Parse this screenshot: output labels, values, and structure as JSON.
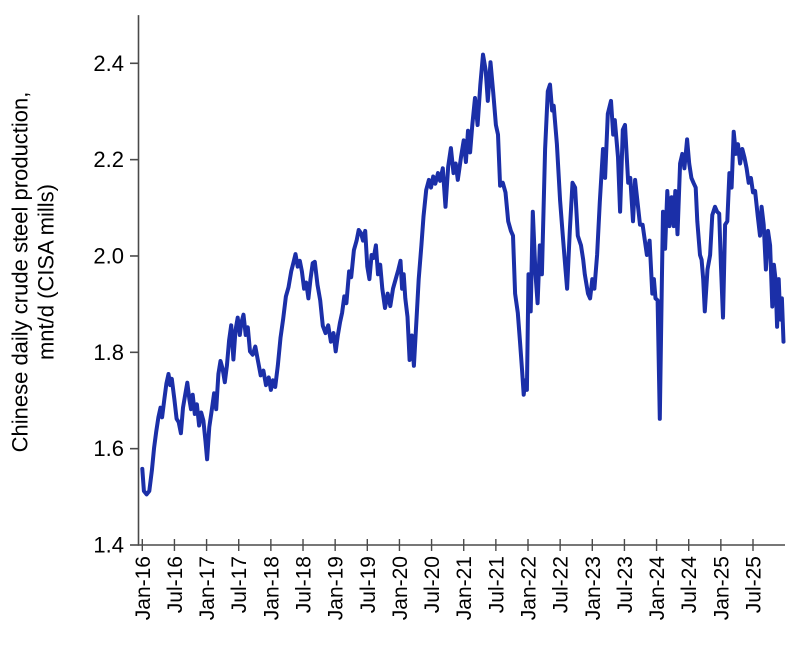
{
  "chart_data": {
    "type": "line",
    "title": "",
    "ylabel": "Chinese daily crude steel production, mnt/d (CISA mills)",
    "ylabel_lines": [
      "Chinese daily crude steel production,",
      "mnt/d (CISA mills)"
    ],
    "xlabel": "",
    "x_unit": "months since Jan-2016",
    "grid": false,
    "legend": "none",
    "background": "#ffffff",
    "line_color": "#1b2fa8",
    "axis_color": "#4a4a4a",
    "text_color": "#000000",
    "ylim": [
      1.4,
      2.5
    ],
    "y_ticks": [
      1.4,
      1.6,
      1.8,
      2.0,
      2.2,
      2.4
    ],
    "y_tick_labels": [
      "1.4",
      "1.6",
      "1.8",
      "2.0",
      "2.2",
      "2.4"
    ],
    "x_tick_months": [
      0,
      6,
      12,
      18,
      24,
      30,
      36,
      42,
      48,
      54,
      60,
      66,
      72,
      78,
      84,
      90,
      96,
      102,
      108,
      114
    ],
    "x_tick_labels": [
      "Jan-16",
      "Jul-16",
      "Jan-17",
      "Jul-17",
      "Jan-18",
      "Jul-18",
      "Jan-19",
      "Jul-19",
      "Jan-20",
      "Jul-20",
      "Jan-21",
      "Jul-21",
      "Jan-22",
      "Jul-22",
      "Jan-23",
      "Jul-23",
      "Jan-24",
      "Jul-24",
      "Jan-25",
      "Jul-25"
    ],
    "series": [
      {
        "name": "Daily crude steel production (CISA mills), mnt/d",
        "points": [
          [
            0.0,
            1.558
          ],
          [
            0.3,
            1.512
          ],
          [
            0.8,
            1.505
          ],
          [
            1.3,
            1.512
          ],
          [
            1.8,
            1.555
          ],
          [
            2.2,
            1.602
          ],
          [
            2.6,
            1.635
          ],
          [
            3.0,
            1.665
          ],
          [
            3.4,
            1.685
          ],
          [
            3.7,
            1.665
          ],
          [
            4.1,
            1.702
          ],
          [
            4.5,
            1.735
          ],
          [
            4.9,
            1.755
          ],
          [
            5.2,
            1.732
          ],
          [
            5.5,
            1.745
          ],
          [
            6.0,
            1.702
          ],
          [
            6.4,
            1.662
          ],
          [
            6.8,
            1.655
          ],
          [
            7.2,
            1.632
          ],
          [
            7.6,
            1.685
          ],
          [
            8.0,
            1.712
          ],
          [
            8.4,
            1.737
          ],
          [
            8.8,
            1.702
          ],
          [
            9.1,
            1.682
          ],
          [
            9.4,
            1.712
          ],
          [
            9.8,
            1.672
          ],
          [
            10.2,
            1.692
          ],
          [
            10.6,
            1.648
          ],
          [
            11.0,
            1.675
          ],
          [
            11.4,
            1.658
          ],
          [
            11.8,
            1.615
          ],
          [
            12.1,
            1.578
          ],
          [
            12.5,
            1.645
          ],
          [
            13.0,
            1.682
          ],
          [
            13.4,
            1.715
          ],
          [
            13.8,
            1.682
          ],
          [
            14.2,
            1.755
          ],
          [
            14.6,
            1.782
          ],
          [
            15.0,
            1.765
          ],
          [
            15.4,
            1.738
          ],
          [
            15.8,
            1.772
          ],
          [
            16.2,
            1.825
          ],
          [
            16.6,
            1.856
          ],
          [
            17.0,
            1.785
          ],
          [
            17.4,
            1.846
          ],
          [
            17.8,
            1.872
          ],
          [
            18.2,
            1.836
          ],
          [
            18.5,
            1.862
          ],
          [
            18.9,
            1.878
          ],
          [
            19.3,
            1.836
          ],
          [
            19.7,
            1.852
          ],
          [
            20.1,
            1.802
          ],
          [
            20.6,
            1.795
          ],
          [
            21.1,
            1.812
          ],
          [
            21.6,
            1.782
          ],
          [
            22.1,
            1.752
          ],
          [
            22.6,
            1.762
          ],
          [
            23.1,
            1.732
          ],
          [
            23.6,
            1.748
          ],
          [
            24.0,
            1.722
          ],
          [
            24.4,
            1.742
          ],
          [
            24.8,
            1.728
          ],
          [
            25.3,
            1.772
          ],
          [
            25.8,
            1.83
          ],
          [
            26.3,
            1.87
          ],
          [
            26.8,
            1.916
          ],
          [
            27.3,
            1.935
          ],
          [
            27.8,
            1.968
          ],
          [
            28.2,
            1.986
          ],
          [
            28.6,
            2.004
          ],
          [
            29.0,
            1.978
          ],
          [
            29.4,
            1.99
          ],
          [
            29.8,
            1.968
          ],
          [
            30.2,
            1.932
          ],
          [
            30.6,
            1.945
          ],
          [
            31.0,
            1.912
          ],
          [
            31.4,
            1.952
          ],
          [
            31.8,
            1.985
          ],
          [
            32.2,
            1.988
          ],
          [
            32.7,
            1.94
          ],
          [
            33.2,
            1.908
          ],
          [
            33.7,
            1.855
          ],
          [
            34.2,
            1.84
          ],
          [
            34.7,
            1.856
          ],
          [
            35.2,
            1.822
          ],
          [
            35.7,
            1.84
          ],
          [
            36.1,
            1.802
          ],
          [
            36.5,
            1.835
          ],
          [
            36.9,
            1.862
          ],
          [
            37.3,
            1.882
          ],
          [
            37.7,
            1.916
          ],
          [
            38.1,
            1.902
          ],
          [
            38.6,
            1.968
          ],
          [
            39.0,
            1.956
          ],
          [
            39.5,
            2.012
          ],
          [
            40.0,
            2.032
          ],
          [
            40.4,
            2.054
          ],
          [
            40.8,
            2.048
          ],
          [
            41.2,
            2.032
          ],
          [
            41.6,
            2.052
          ],
          [
            42.0,
            1.978
          ],
          [
            42.4,
            1.952
          ],
          [
            42.8,
            2.002
          ],
          [
            43.2,
            1.996
          ],
          [
            43.6,
            2.022
          ],
          [
            44.0,
            1.962
          ],
          [
            44.4,
            1.982
          ],
          [
            44.8,
            1.932
          ],
          [
            45.3,
            1.892
          ],
          [
            45.8,
            1.922
          ],
          [
            46.3,
            1.896
          ],
          [
            46.8,
            1.932
          ],
          [
            47.3,
            1.952
          ],
          [
            47.8,
            1.972
          ],
          [
            48.2,
            1.99
          ],
          [
            48.5,
            1.932
          ],
          [
            48.8,
            1.962
          ],
          [
            49.1,
            1.912
          ],
          [
            49.5,
            1.874
          ],
          [
            49.9,
            1.784
          ],
          [
            50.3,
            1.835
          ],
          [
            50.7,
            1.772
          ],
          [
            51.2,
            1.872
          ],
          [
            51.6,
            1.952
          ],
          [
            52.1,
            2.022
          ],
          [
            52.5,
            2.082
          ],
          [
            53.0,
            2.137
          ],
          [
            53.5,
            2.158
          ],
          [
            53.9,
            2.142
          ],
          [
            54.3,
            2.165
          ],
          [
            54.7,
            2.15
          ],
          [
            55.2,
            2.172
          ],
          [
            55.6,
            2.156
          ],
          [
            56.1,
            2.182
          ],
          [
            56.6,
            2.102
          ],
          [
            57.1,
            2.186
          ],
          [
            57.6,
            2.224
          ],
          [
            58.1,
            2.172
          ],
          [
            58.5,
            2.192
          ],
          [
            58.9,
            2.158
          ],
          [
            59.5,
            2.205
          ],
          [
            60.0,
            2.24
          ],
          [
            60.4,
            2.195
          ],
          [
            60.8,
            2.26
          ],
          [
            61.2,
            2.215
          ],
          [
            61.6,
            2.272
          ],
          [
            62.1,
            2.328
          ],
          [
            62.6,
            2.272
          ],
          [
            63.1,
            2.355
          ],
          [
            63.6,
            2.418
          ],
          [
            64.1,
            2.385
          ],
          [
            64.5,
            2.322
          ],
          [
            65.0,
            2.402
          ],
          [
            65.5,
            2.34
          ],
          [
            66.0,
            2.272
          ],
          [
            66.4,
            2.252
          ],
          [
            66.8,
            2.146
          ],
          [
            67.3,
            2.152
          ],
          [
            67.8,
            2.132
          ],
          [
            68.3,
            2.072
          ],
          [
            68.8,
            2.052
          ],
          [
            69.2,
            2.042
          ],
          [
            69.6,
            1.922
          ],
          [
            70.1,
            1.882
          ],
          [
            70.5,
            1.822
          ],
          [
            70.9,
            1.762
          ],
          [
            71.2,
            1.712
          ],
          [
            71.5,
            1.742
          ],
          [
            71.8,
            1.722
          ],
          [
            72.1,
            1.962
          ],
          [
            72.5,
            1.885
          ],
          [
            72.9,
            2.092
          ],
          [
            73.4,
            1.962
          ],
          [
            73.8,
            1.902
          ],
          [
            74.2,
            2.022
          ],
          [
            74.6,
            1.962
          ],
          [
            75.2,
            2.222
          ],
          [
            75.7,
            2.342
          ],
          [
            76.1,
            2.356
          ],
          [
            76.5,
            2.302
          ],
          [
            76.8,
            2.312
          ],
          [
            77.4,
            2.232
          ],
          [
            78.0,
            2.115
          ],
          [
            78.5,
            2.042
          ],
          [
            79.0,
            1.972
          ],
          [
            79.3,
            1.932
          ],
          [
            79.8,
            2.052
          ],
          [
            80.3,
            2.152
          ],
          [
            80.8,
            2.142
          ],
          [
            81.3,
            2.042
          ],
          [
            81.9,
            2.022
          ],
          [
            82.3,
            1.992
          ],
          [
            82.6,
            1.962
          ],
          [
            83.2,
            1.922
          ],
          [
            83.6,
            1.912
          ],
          [
            84.0,
            1.952
          ],
          [
            84.4,
            1.932
          ],
          [
            84.9,
            2.002
          ],
          [
            85.4,
            2.112
          ],
          [
            86.0,
            2.222
          ],
          [
            86.4,
            2.162
          ],
          [
            86.9,
            2.295
          ],
          [
            87.5,
            2.322
          ],
          [
            87.9,
            2.252
          ],
          [
            88.2,
            2.282
          ],
          [
            88.8,
            2.205
          ],
          [
            89.2,
            2.092
          ],
          [
            89.7,
            2.262
          ],
          [
            90.1,
            2.272
          ],
          [
            90.7,
            2.152
          ],
          [
            91.1,
            2.162
          ],
          [
            91.6,
            2.072
          ],
          [
            92.0,
            2.158
          ],
          [
            92.9,
            2.065
          ],
          [
            93.4,
            2.065
          ],
          [
            94.2,
            2.002
          ],
          [
            94.7,
            2.032
          ],
          [
            95.2,
            1.922
          ],
          [
            95.5,
            1.952
          ],
          [
            95.8,
            1.912
          ],
          [
            96.2,
            1.908
          ],
          [
            96.6,
            1.662
          ],
          [
            97.0,
            1.952
          ],
          [
            97.2,
            2.092
          ],
          [
            97.6,
            2.015
          ],
          [
            98.0,
            2.135
          ],
          [
            98.4,
            2.062
          ],
          [
            98.8,
            2.122
          ],
          [
            99.2,
            2.062
          ],
          [
            99.5,
            2.135
          ],
          [
            99.9,
            2.045
          ],
          [
            100.4,
            2.192
          ],
          [
            100.8,
            2.212
          ],
          [
            101.2,
            2.182
          ],
          [
            101.7,
            2.242
          ],
          [
            102.1,
            2.192
          ],
          [
            102.5,
            2.162
          ],
          [
            102.9,
            2.152
          ],
          [
            103.3,
            2.142
          ],
          [
            103.6,
            2.072
          ],
          [
            104.1,
            2.002
          ],
          [
            104.4,
            1.992
          ],
          [
            104.7,
            1.952
          ],
          [
            105.0,
            1.885
          ],
          [
            105.5,
            1.972
          ],
          [
            106.0,
            2.002
          ],
          [
            106.4,
            2.085
          ],
          [
            106.9,
            2.102
          ],
          [
            107.3,
            2.092
          ],
          [
            107.7,
            2.088
          ],
          [
            108.0,
            1.982
          ],
          [
            108.4,
            1.872
          ],
          [
            108.8,
            2.065
          ],
          [
            109.2,
            2.072
          ],
          [
            109.6,
            2.172
          ],
          [
            110.0,
            2.142
          ],
          [
            110.4,
            2.258
          ],
          [
            110.8,
            2.212
          ],
          [
            111.2,
            2.232
          ],
          [
            111.6,
            2.192
          ],
          [
            112.0,
            2.222
          ],
          [
            112.4,
            2.205
          ],
          [
            112.8,
            2.182
          ],
          [
            113.2,
            2.152
          ],
          [
            113.6,
            2.162
          ],
          [
            114.0,
            2.132
          ],
          [
            114.4,
            2.135
          ],
          [
            114.9,
            2.082
          ],
          [
            115.3,
            2.042
          ],
          [
            115.6,
            2.102
          ],
          [
            116.0,
            2.065
          ],
          [
            116.4,
            1.972
          ],
          [
            116.8,
            2.052
          ],
          [
            117.2,
            2.022
          ],
          [
            117.6,
            1.895
          ],
          [
            117.9,
            1.982
          ],
          [
            118.2,
            1.952
          ],
          [
            118.5,
            1.853
          ],
          [
            118.8,
            1.952
          ],
          [
            119.1,
            1.868
          ],
          [
            119.4,
            1.912
          ],
          [
            119.7,
            1.822
          ]
        ]
      }
    ]
  }
}
